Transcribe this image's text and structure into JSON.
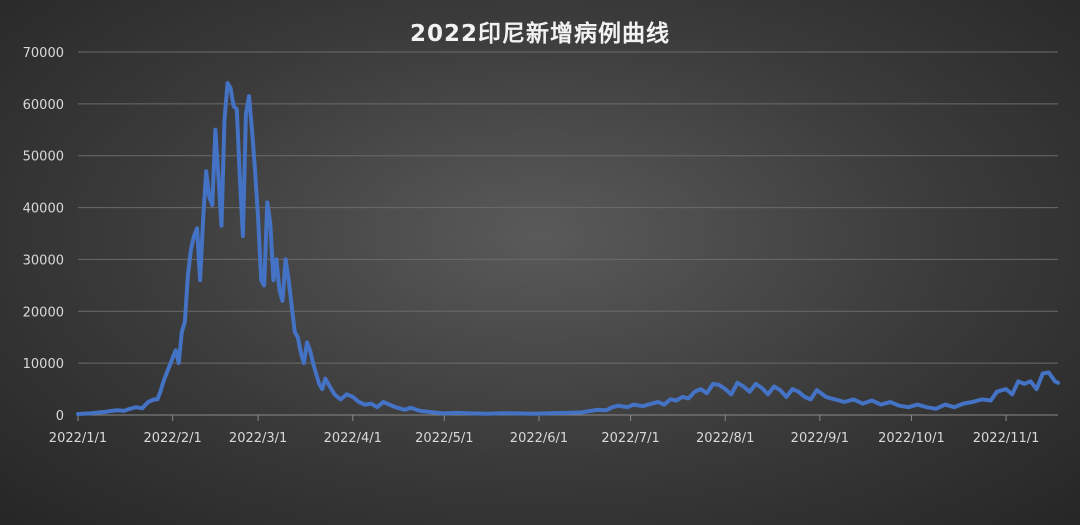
{
  "chart_data": {
    "type": "line",
    "title": "2022印尼新增病例曲线",
    "xlabel": "",
    "ylabel": "",
    "ylim": [
      0,
      70000
    ],
    "y_ticks": [
      0,
      10000,
      20000,
      30000,
      40000,
      50000,
      60000,
      70000
    ],
    "y_tick_labels": [
      "0",
      "10000",
      "20000",
      "30000",
      "40000",
      "50000",
      "60000",
      "70000"
    ],
    "x_range": [
      "2022-01-01",
      "2022-11-18"
    ],
    "x_ticks": [
      "2022-01-01",
      "2022-02-01",
      "2022-03-01",
      "2022-04-01",
      "2022-05-01",
      "2022-06-01",
      "2022-07-01",
      "2022-08-01",
      "2022-09-01",
      "2022-10-01",
      "2022-11-01"
    ],
    "x_tick_labels": [
      "2022/1/1",
      "2022/2/1",
      "2022/3/1",
      "2022/4/1",
      "2022/5/1",
      "2022/6/1",
      "2022/7/1",
      "2022/8/1",
      "2022/9/1",
      "2022/10/1",
      "2022/11/1"
    ],
    "grid": true,
    "legend": "none",
    "colors": {
      "series": "#4472c4",
      "grid": "#6b6b6b",
      "text": "#d9d9d9",
      "title": "#f2f2f2"
    },
    "series": [
      {
        "points": [
          [
            "2022-01-01",
            200
          ],
          [
            "2022-01-05",
            300
          ],
          [
            "2022-01-08",
            500
          ],
          [
            "2022-01-10",
            600
          ],
          [
            "2022-01-12",
            800
          ],
          [
            "2022-01-14",
            900
          ],
          [
            "2022-01-16",
            800
          ],
          [
            "2022-01-18",
            1200
          ],
          [
            "2022-01-20",
            1500
          ],
          [
            "2022-01-22",
            1300
          ],
          [
            "2022-01-24",
            2500
          ],
          [
            "2022-01-26",
            3000
          ],
          [
            "2022-01-27",
            3000
          ],
          [
            "2022-01-28",
            4500
          ],
          [
            "2022-01-29",
            6500
          ],
          [
            "2022-01-30",
            8000
          ],
          [
            "2022-01-31",
            9500
          ],
          [
            "2022-02-01",
            11000
          ],
          [
            "2022-02-02",
            12500
          ],
          [
            "2022-02-03",
            10000
          ],
          [
            "2022-02-04",
            16000
          ],
          [
            "2022-02-05",
            18000
          ],
          [
            "2022-02-06",
            27000
          ],
          [
            "2022-02-07",
            32000
          ],
          [
            "2022-02-08",
            34500
          ],
          [
            "2022-02-09",
            36000
          ],
          [
            "2022-02-10",
            26000
          ],
          [
            "2022-02-11",
            38000
          ],
          [
            "2022-02-12",
            47000
          ],
          [
            "2022-02-13",
            42000
          ],
          [
            "2022-02-14",
            40500
          ],
          [
            "2022-02-15",
            55000
          ],
          [
            "2022-02-16",
            46000
          ],
          [
            "2022-02-17",
            36500
          ],
          [
            "2022-02-18",
            57000
          ],
          [
            "2022-02-19",
            64000
          ],
          [
            "2022-02-20",
            63000
          ],
          [
            "2022-02-21",
            59500
          ],
          [
            "2022-02-22",
            59000
          ],
          [
            "2022-02-23",
            46000
          ],
          [
            "2022-02-24",
            34500
          ],
          [
            "2022-02-25",
            58000
          ],
          [
            "2022-02-26",
            61500
          ],
          [
            "2022-02-27",
            55000
          ],
          [
            "2022-02-28",
            47000
          ],
          [
            "2022-03-01",
            38000
          ],
          [
            "2022-03-02",
            26000
          ],
          [
            "2022-03-03",
            25000
          ],
          [
            "2022-03-04",
            41000
          ],
          [
            "2022-03-05",
            37000
          ],
          [
            "2022-03-06",
            26000
          ],
          [
            "2022-03-07",
            30000
          ],
          [
            "2022-03-08",
            24000
          ],
          [
            "2022-03-09",
            22000
          ],
          [
            "2022-03-10",
            30000
          ],
          [
            "2022-03-11",
            26000
          ],
          [
            "2022-03-12",
            21000
          ],
          [
            "2022-03-13",
            16000
          ],
          [
            "2022-03-14",
            15000
          ],
          [
            "2022-03-15",
            12000
          ],
          [
            "2022-03-16",
            10000
          ],
          [
            "2022-03-17",
            14000
          ],
          [
            "2022-03-18",
            12500
          ],
          [
            "2022-03-19",
            10000
          ],
          [
            "2022-03-20",
            8000
          ],
          [
            "2022-03-21",
            6000
          ],
          [
            "2022-03-22",
            5000
          ],
          [
            "2022-03-23",
            7000
          ],
          [
            "2022-03-24",
            6000
          ],
          [
            "2022-03-25",
            5000
          ],
          [
            "2022-03-26",
            4000
          ],
          [
            "2022-03-28",
            3000
          ],
          [
            "2022-03-30",
            4000
          ],
          [
            "2022-04-01",
            3500
          ],
          [
            "2022-04-03",
            2500
          ],
          [
            "2022-04-05",
            2000
          ],
          [
            "2022-04-07",
            2200
          ],
          [
            "2022-04-09",
            1500
          ],
          [
            "2022-04-11",
            2500
          ],
          [
            "2022-04-13",
            2000
          ],
          [
            "2022-04-15",
            1500
          ],
          [
            "2022-04-18",
            1000
          ],
          [
            "2022-04-20",
            1400
          ],
          [
            "2022-04-23",
            800
          ],
          [
            "2022-04-26",
            600
          ],
          [
            "2022-04-29",
            400
          ],
          [
            "2022-05-01",
            300
          ],
          [
            "2022-05-05",
            400
          ],
          [
            "2022-05-10",
            300
          ],
          [
            "2022-05-15",
            250
          ],
          [
            "2022-05-20",
            350
          ],
          [
            "2022-05-25",
            300
          ],
          [
            "2022-05-30",
            250
          ],
          [
            "2022-06-05",
            350
          ],
          [
            "2022-06-10",
            400
          ],
          [
            "2022-06-15",
            500
          ],
          [
            "2022-06-18",
            800
          ],
          [
            "2022-06-20",
            1000
          ],
          [
            "2022-06-23",
            900
          ],
          [
            "2022-06-25",
            1500
          ],
          [
            "2022-06-27",
            1800
          ],
          [
            "2022-06-30",
            1500
          ],
          [
            "2022-07-02",
            2000
          ],
          [
            "2022-07-05",
            1700
          ],
          [
            "2022-07-08",
            2200
          ],
          [
            "2022-07-10",
            2500
          ],
          [
            "2022-07-12",
            2000
          ],
          [
            "2022-07-14",
            3000
          ],
          [
            "2022-07-16",
            2800
          ],
          [
            "2022-07-18",
            3500
          ],
          [
            "2022-07-20",
            3200
          ],
          [
            "2022-07-22",
            4500
          ],
          [
            "2022-07-24",
            5000
          ],
          [
            "2022-07-26",
            4200
          ],
          [
            "2022-07-28",
            6000
          ],
          [
            "2022-07-30",
            5800
          ],
          [
            "2022-08-01",
            5000
          ],
          [
            "2022-08-03",
            4000
          ],
          [
            "2022-08-05",
            6200
          ],
          [
            "2022-08-07",
            5500
          ],
          [
            "2022-08-09",
            4500
          ],
          [
            "2022-08-11",
            6000
          ],
          [
            "2022-08-13",
            5200
          ],
          [
            "2022-08-15",
            4000
          ],
          [
            "2022-08-17",
            5500
          ],
          [
            "2022-08-19",
            4800
          ],
          [
            "2022-08-21",
            3500
          ],
          [
            "2022-08-23",
            5000
          ],
          [
            "2022-08-25",
            4500
          ],
          [
            "2022-08-27",
            3500
          ],
          [
            "2022-08-29",
            3000
          ],
          [
            "2022-08-31",
            4800
          ],
          [
            "2022-09-03",
            3500
          ],
          [
            "2022-09-06",
            3000
          ],
          [
            "2022-09-09",
            2500
          ],
          [
            "2022-09-12",
            3000
          ],
          [
            "2022-09-15",
            2200
          ],
          [
            "2022-09-18",
            2800
          ],
          [
            "2022-09-21",
            2000
          ],
          [
            "2022-09-24",
            2500
          ],
          [
            "2022-09-27",
            1800
          ],
          [
            "2022-09-30",
            1500
          ],
          [
            "2022-10-03",
            2000
          ],
          [
            "2022-10-06",
            1500
          ],
          [
            "2022-10-09",
            1200
          ],
          [
            "2022-10-12",
            2000
          ],
          [
            "2022-10-15",
            1500
          ],
          [
            "2022-10-18",
            2200
          ],
          [
            "2022-10-21",
            2500
          ],
          [
            "2022-10-24",
            3000
          ],
          [
            "2022-10-27",
            2800
          ],
          [
            "2022-10-29",
            4500
          ],
          [
            "2022-11-01",
            5000
          ],
          [
            "2022-11-03",
            4000
          ],
          [
            "2022-11-05",
            6500
          ],
          [
            "2022-11-07",
            6000
          ],
          [
            "2022-11-09",
            6500
          ],
          [
            "2022-11-11",
            5000
          ],
          [
            "2022-11-13",
            8000
          ],
          [
            "2022-11-15",
            8200
          ],
          [
            "2022-11-17",
            6500
          ],
          [
            "2022-11-18",
            6200
          ]
        ]
      }
    ]
  }
}
